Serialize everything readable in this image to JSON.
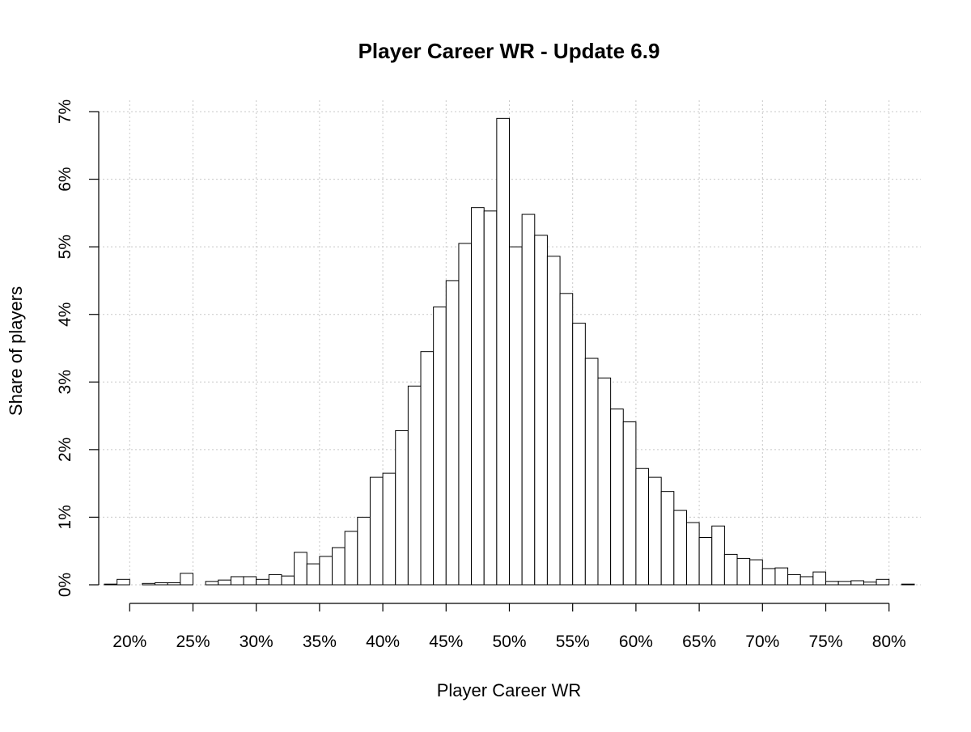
{
  "chart_data": {
    "type": "bar",
    "title": "Player Career WR - Update 6.9",
    "xlabel": "Player Career WR",
    "ylabel": "Share of players",
    "x_ticks": [
      "20%",
      "25%",
      "30%",
      "35%",
      "40%",
      "45%",
      "50%",
      "55%",
      "60%",
      "65%",
      "70%",
      "75%",
      "80%"
    ],
    "x_tick_values": [
      20,
      25,
      30,
      35,
      40,
      45,
      50,
      55,
      60,
      65,
      70,
      75,
      80
    ],
    "y_ticks": [
      "0%",
      "1%",
      "2%",
      "3%",
      "4%",
      "5%",
      "6%",
      "7%"
    ],
    "y_tick_values": [
      0,
      1,
      2,
      3,
      4,
      5,
      6,
      7
    ],
    "xlim": [
      18,
      82
    ],
    "ylim": [
      0,
      7
    ],
    "bin_width": 1,
    "bin_starts": [
      18,
      19,
      20,
      21,
      22,
      23,
      24,
      25,
      26,
      27,
      28,
      29,
      30,
      31,
      32,
      33,
      34,
      35,
      36,
      37,
      38,
      39,
      40,
      41,
      42,
      43,
      44,
      45,
      46,
      47,
      48,
      49,
      50,
      51,
      52,
      53,
      54,
      55,
      56,
      57,
      58,
      59,
      60,
      61,
      62,
      63,
      64,
      65,
      66,
      67,
      68,
      69,
      70,
      71,
      72,
      73,
      74,
      75,
      76,
      77,
      78,
      79,
      80,
      81
    ],
    "values": [
      0.01,
      0.08,
      0.0,
      0.02,
      0.03,
      0.03,
      0.17,
      0.0,
      0.05,
      0.07,
      0.12,
      0.12,
      0.08,
      0.15,
      0.13,
      0.48,
      0.31,
      0.42,
      0.55,
      0.79,
      1.0,
      1.59,
      1.65,
      2.28,
      2.94,
      3.45,
      4.11,
      4.5,
      5.05,
      5.58,
      5.53,
      6.9,
      5.0,
      5.48,
      5.17,
      4.86,
      4.31,
      3.87,
      3.35,
      3.06,
      2.6,
      2.41,
      1.72,
      1.59,
      1.38,
      1.1,
      0.92,
      0.7,
      0.87,
      0.45,
      0.39,
      0.37,
      0.24,
      0.25,
      0.15,
      0.12,
      0.19,
      0.05,
      0.05,
      0.06,
      0.04,
      0.08,
      0.0,
      0.01
    ],
    "grid": true,
    "legend": "none"
  }
}
